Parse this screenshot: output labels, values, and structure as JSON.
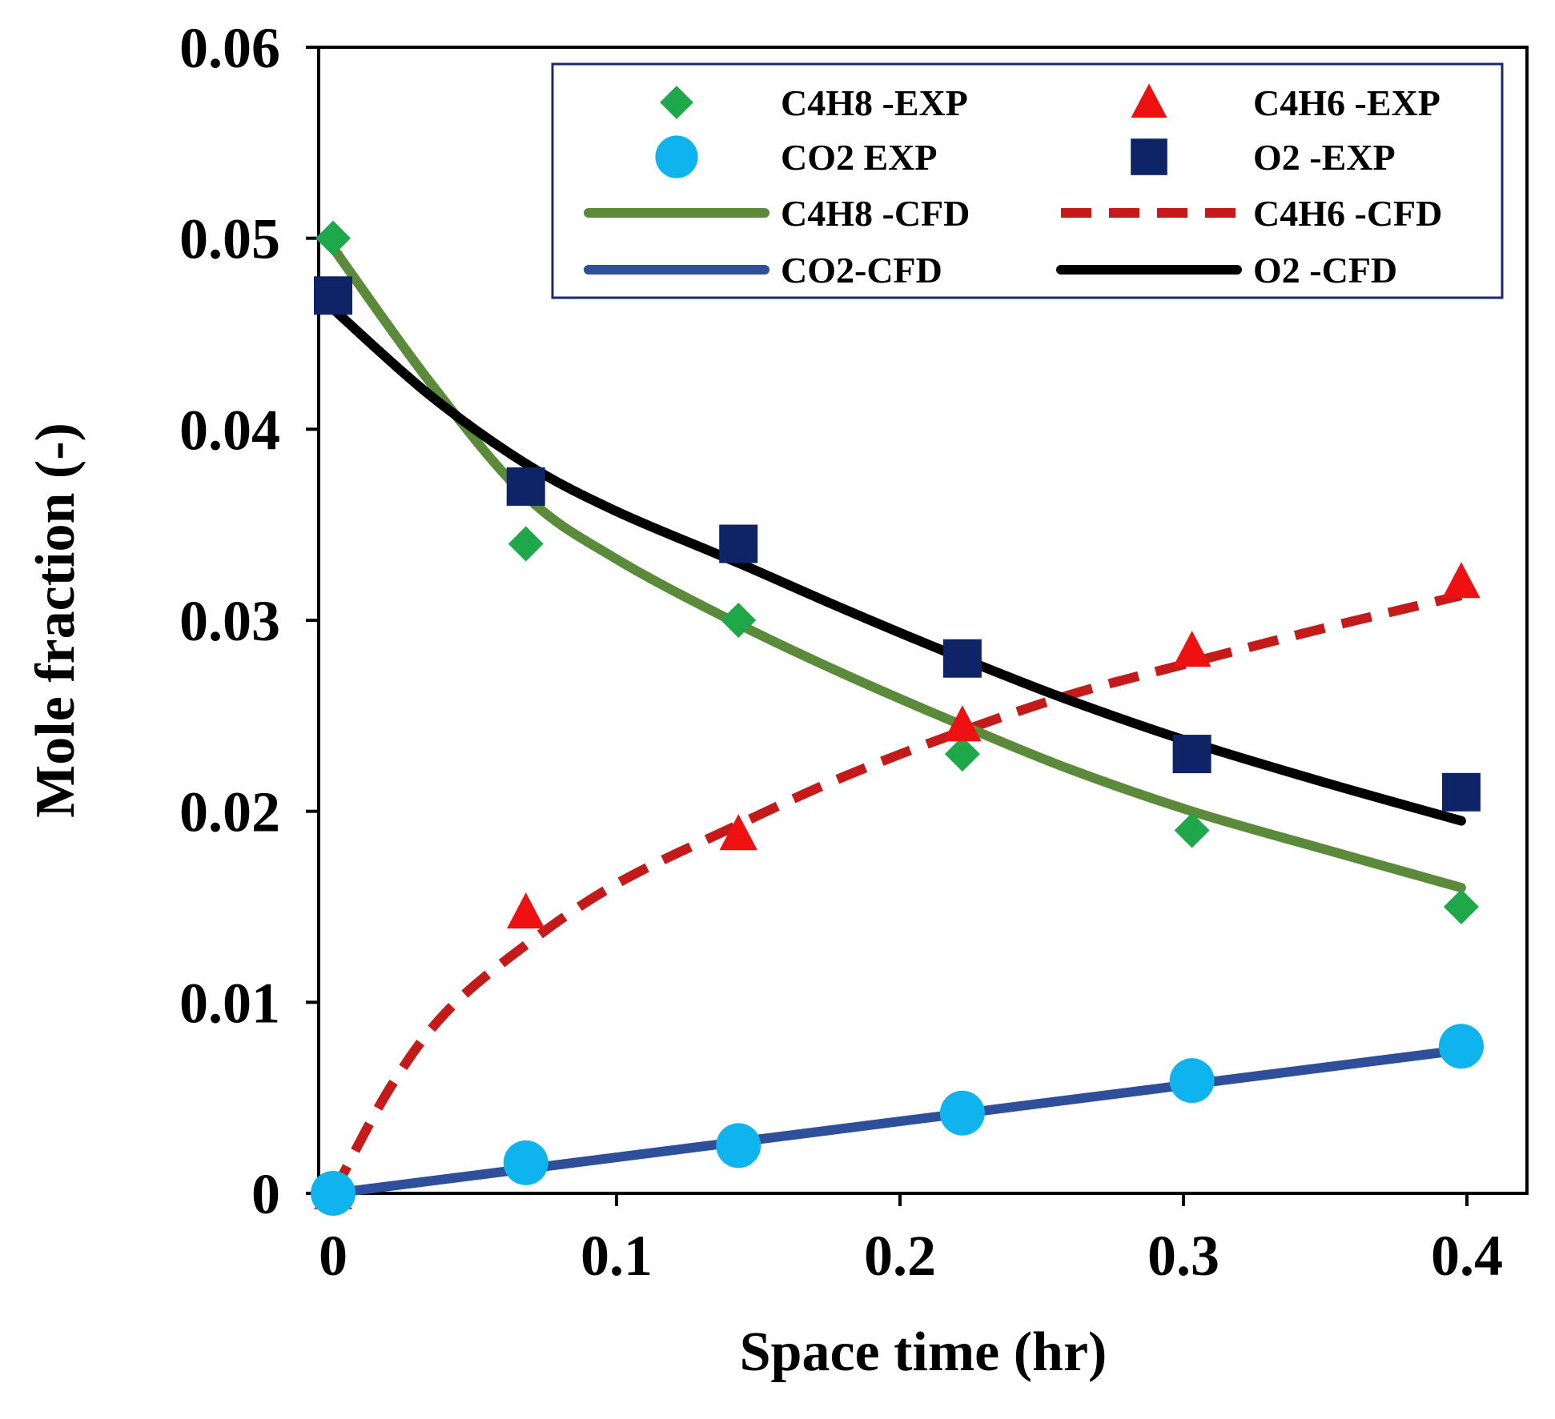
{
  "chart_data": {
    "type": "line",
    "xlabel": "Space time (hr)",
    "ylabel": "Mole fraction (-)",
    "xlim": [
      0,
      0.4
    ],
    "ylim": [
      0,
      0.06
    ],
    "x_ticks": [
      "0",
      "0.1",
      "0.2",
      "0.3",
      "0.4"
    ],
    "y_ticks": [
      "0",
      "0.01",
      "0.02",
      "0.03",
      "0.04",
      "0.05",
      "0.06"
    ],
    "grid": false,
    "legend_position": "top-right",
    "series": [
      {
        "name": "C4H8 -EXP",
        "kind": "marker",
        "marker": "diamond",
        "color": "#1fa84a",
        "x": [
          0,
          0.068,
          0.143,
          0.222,
          0.303,
          0.398
        ],
        "y": [
          0.05,
          0.034,
          0.03,
          0.023,
          0.019,
          0.015
        ]
      },
      {
        "name": "C4H6 -EXP",
        "kind": "marker",
        "marker": "triangle",
        "color": "#ee1111",
        "x": [
          0,
          0.068,
          0.143,
          0.222,
          0.303,
          0.398
        ],
        "y": [
          0,
          0.0147,
          0.0188,
          0.0245,
          0.0284,
          0.032
        ]
      },
      {
        "name": "CO2 EXP",
        "kind": "marker",
        "marker": "circle",
        "color": "#0fb3ee",
        "x": [
          0,
          0.068,
          0.143,
          0.222,
          0.303,
          0.398
        ],
        "y": [
          0,
          0.0016,
          0.0025,
          0.0042,
          0.0059,
          0.0077
        ]
      },
      {
        "name": "O2 -EXP",
        "kind": "marker",
        "marker": "square",
        "color": "#0e2466",
        "x": [
          0,
          0.068,
          0.143,
          0.222,
          0.303,
          0.398
        ],
        "y": [
          0.047,
          0.037,
          0.034,
          0.028,
          0.023,
          0.021
        ]
      },
      {
        "name": "C4H8 -CFD",
        "kind": "line",
        "dash": "solid",
        "color": "#5a8a3a",
        "x": [
          0,
          0.034,
          0.068,
          0.1,
          0.143,
          0.18,
          0.222,
          0.26,
          0.303,
          0.35,
          0.398
        ],
        "y": [
          0.0495,
          0.0425,
          0.0365,
          0.0332,
          0.0298,
          0.0272,
          0.0245,
          0.0222,
          0.02,
          0.018,
          0.016
        ]
      },
      {
        "name": "C4H6 -CFD",
        "kind": "line",
        "dash": "dashed",
        "color": "#c41a1a",
        "x": [
          0,
          0.02,
          0.04,
          0.068,
          0.1,
          0.143,
          0.18,
          0.222,
          0.26,
          0.303,
          0.35,
          0.398
        ],
        "y": [
          0,
          0.0055,
          0.0095,
          0.013,
          0.0162,
          0.0193,
          0.0218,
          0.0242,
          0.0261,
          0.0278,
          0.0296,
          0.0313
        ]
      },
      {
        "name": "CO2-CFD",
        "kind": "line",
        "dash": "solid",
        "color": "#2f4f9a",
        "x": [
          0,
          0.398
        ],
        "y": [
          0,
          0.0075
        ]
      },
      {
        "name": "O2 -CFD",
        "kind": "line",
        "dash": "solid",
        "color": "#000000",
        "x": [
          0,
          0.034,
          0.068,
          0.1,
          0.143,
          0.18,
          0.222,
          0.26,
          0.303,
          0.35,
          0.398
        ],
        "y": [
          0.0463,
          0.0418,
          0.0382,
          0.0357,
          0.033,
          0.0306,
          0.028,
          0.0258,
          0.0236,
          0.0215,
          0.0195
        ]
      }
    ]
  }
}
